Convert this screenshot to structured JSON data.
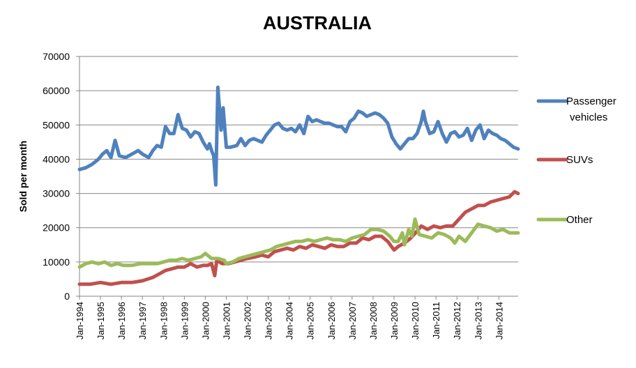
{
  "chart_data": {
    "type": "line",
    "title": "AUSTRALIA",
    "xlabel": "",
    "ylabel": "Sold per month",
    "ylim": [
      0,
      70000
    ],
    "yticks": [
      0,
      10000,
      20000,
      30000,
      40000,
      50000,
      60000,
      70000
    ],
    "xlim": [
      1994.0,
      2014.92
    ],
    "xticks": [
      {
        "year": 1994,
        "label": "Jan-1994"
      },
      {
        "year": 1995,
        "label": "Jan-1995"
      },
      {
        "year": 1996,
        "label": "Jan-1996"
      },
      {
        "year": 1997,
        "label": "Jan-1997"
      },
      {
        "year": 1998,
        "label": "Jan-1998"
      },
      {
        "year": 1999,
        "label": "Jan-1999"
      },
      {
        "year": 2000,
        "label": "Jan-2000"
      },
      {
        "year": 2001,
        "label": "Jan-2001"
      },
      {
        "year": 2002,
        "label": "Jan-2002"
      },
      {
        "year": 2003,
        "label": "Jan-2003"
      },
      {
        "year": 2004,
        "label": "Jan-2004"
      },
      {
        "year": 2005,
        "label": "Jan-2005"
      },
      {
        "year": 2006,
        "label": "Jan-2006"
      },
      {
        "year": 2007,
        "label": "Jan-2007"
      },
      {
        "year": 2008,
        "label": "Jan-2008"
      },
      {
        "year": 2009,
        "label": "Jan-2009"
      },
      {
        "year": 2010,
        "label": "Jan-2010"
      },
      {
        "year": 2011,
        "label": "Jan-2011"
      },
      {
        "year": 2012,
        "label": "Jan-2012"
      },
      {
        "year": 2013,
        "label": "Jan-2013"
      },
      {
        "year": 2014,
        "label": "Jan-2014"
      }
    ],
    "grid": true,
    "legend_position": "right",
    "series": [
      {
        "name": "Passenger vehicles",
        "color": "#4F81BD",
        "points": [
          [
            1994.0,
            37000
          ],
          [
            1994.3,
            37500
          ],
          [
            1994.6,
            38500
          ],
          [
            1994.9,
            40000
          ],
          [
            1995.1,
            41500
          ],
          [
            1995.3,
            42500
          ],
          [
            1995.5,
            40500
          ],
          [
            1995.7,
            45500
          ],
          [
            1995.9,
            41000
          ],
          [
            1996.2,
            40500
          ],
          [
            1996.5,
            41500
          ],
          [
            1996.8,
            42500
          ],
          [
            1997.0,
            41500
          ],
          [
            1997.3,
            40500
          ],
          [
            1997.5,
            42500
          ],
          [
            1997.7,
            44000
          ],
          [
            1997.9,
            43500
          ],
          [
            1998.1,
            49500
          ],
          [
            1998.3,
            47500
          ],
          [
            1998.5,
            47500
          ],
          [
            1998.7,
            53000
          ],
          [
            1998.9,
            49000
          ],
          [
            1999.1,
            48500
          ],
          [
            1999.3,
            46500
          ],
          [
            1999.5,
            48000
          ],
          [
            1999.7,
            47500
          ],
          [
            1999.9,
            45000
          ],
          [
            2000.1,
            43000
          ],
          [
            2000.2,
            44500
          ],
          [
            2000.3,
            42500
          ],
          [
            2000.4,
            41000
          ],
          [
            2000.5,
            32500
          ],
          [
            2000.6,
            61000
          ],
          [
            2000.75,
            48500
          ],
          [
            2000.85,
            55000
          ],
          [
            2001.0,
            43500
          ],
          [
            2001.2,
            43500
          ],
          [
            2001.5,
            44000
          ],
          [
            2001.7,
            46000
          ],
          [
            2001.9,
            44000
          ],
          [
            2002.1,
            45500
          ],
          [
            2002.3,
            46000
          ],
          [
            2002.5,
            45500
          ],
          [
            2002.7,
            45000
          ],
          [
            2002.9,
            47000
          ],
          [
            2003.1,
            48500
          ],
          [
            2003.3,
            50000
          ],
          [
            2003.5,
            50500
          ],
          [
            2003.7,
            49000
          ],
          [
            2003.9,
            48500
          ],
          [
            2004.1,
            49000
          ],
          [
            2004.3,
            48000
          ],
          [
            2004.5,
            50000
          ],
          [
            2004.7,
            47500
          ],
          [
            2004.9,
            52500
          ],
          [
            2005.1,
            51000
          ],
          [
            2005.3,
            51500
          ],
          [
            2005.5,
            51000
          ],
          [
            2005.7,
            50500
          ],
          [
            2005.9,
            50500
          ],
          [
            2006.1,
            50000
          ],
          [
            2006.3,
            49500
          ],
          [
            2006.5,
            49500
          ],
          [
            2006.7,
            48000
          ],
          [
            2006.9,
            51000
          ],
          [
            2007.1,
            52000
          ],
          [
            2007.3,
            54000
          ],
          [
            2007.5,
            53500
          ],
          [
            2007.7,
            52500
          ],
          [
            2007.9,
            53000
          ],
          [
            2008.1,
            53500
          ],
          [
            2008.3,
            53000
          ],
          [
            2008.5,
            52000
          ],
          [
            2008.7,
            50500
          ],
          [
            2008.9,
            46500
          ],
          [
            2009.1,
            44500
          ],
          [
            2009.3,
            43000
          ],
          [
            2009.5,
            44500
          ],
          [
            2009.7,
            46000
          ],
          [
            2009.9,
            46000
          ],
          [
            2010.1,
            47500
          ],
          [
            2010.3,
            51000
          ],
          [
            2010.4,
            54000
          ],
          [
            2010.5,
            51000
          ],
          [
            2010.7,
            47500
          ],
          [
            2010.9,
            48000
          ],
          [
            2011.1,
            51000
          ],
          [
            2011.3,
            47500
          ],
          [
            2011.5,
            45000
          ],
          [
            2011.7,
            47500
          ],
          [
            2011.9,
            48000
          ],
          [
            2012.1,
            46500
          ],
          [
            2012.3,
            47000
          ],
          [
            2012.5,
            49000
          ],
          [
            2012.7,
            45500
          ],
          [
            2012.9,
            48500
          ],
          [
            2013.1,
            50000
          ],
          [
            2013.3,
            46000
          ],
          [
            2013.5,
            48500
          ],
          [
            2013.7,
            47500
          ],
          [
            2013.9,
            47000
          ],
          [
            2014.1,
            46000
          ],
          [
            2014.3,
            45500
          ],
          [
            2014.5,
            44500
          ],
          [
            2014.7,
            43500
          ],
          [
            2014.92,
            43000
          ]
        ]
      },
      {
        "name": "SUVs",
        "color": "#C0504D",
        "points": [
          [
            1994.0,
            3500
          ],
          [
            1994.5,
            3500
          ],
          [
            1995.0,
            4000
          ],
          [
            1995.5,
            3500
          ],
          [
            1996.0,
            4000
          ],
          [
            1996.5,
            4000
          ],
          [
            1997.0,
            4500
          ],
          [
            1997.5,
            5500
          ],
          [
            1997.8,
            6500
          ],
          [
            1998.1,
            7500
          ],
          [
            1998.4,
            8000
          ],
          [
            1998.7,
            8500
          ],
          [
            1999.0,
            8500
          ],
          [
            1999.3,
            9500
          ],
          [
            1999.6,
            8500
          ],
          [
            1999.9,
            9000
          ],
          [
            2000.1,
            9000
          ],
          [
            2000.3,
            9500
          ],
          [
            2000.45,
            6000
          ],
          [
            2000.55,
            10500
          ],
          [
            2000.8,
            9500
          ],
          [
            2001.1,
            9500
          ],
          [
            2001.4,
            10000
          ],
          [
            2001.7,
            10500
          ],
          [
            2002.0,
            11000
          ],
          [
            2002.4,
            11500
          ],
          [
            2002.7,
            12000
          ],
          [
            2003.0,
            11500
          ],
          [
            2003.3,
            13000
          ],
          [
            2003.6,
            13500
          ],
          [
            2003.9,
            14000
          ],
          [
            2004.2,
            13500
          ],
          [
            2004.5,
            14500
          ],
          [
            2004.8,
            14000
          ],
          [
            2005.1,
            15000
          ],
          [
            2005.4,
            14500
          ],
          [
            2005.7,
            14000
          ],
          [
            2006.0,
            15000
          ],
          [
            2006.3,
            14500
          ],
          [
            2006.6,
            14500
          ],
          [
            2006.9,
            15500
          ],
          [
            2007.2,
            15500
          ],
          [
            2007.5,
            17000
          ],
          [
            2007.8,
            16500
          ],
          [
            2008.1,
            17500
          ],
          [
            2008.4,
            17500
          ],
          [
            2008.7,
            16000
          ],
          [
            2009.0,
            13500
          ],
          [
            2009.2,
            14500
          ],
          [
            2009.5,
            15500
          ],
          [
            2009.8,
            17000
          ],
          [
            2010.1,
            19000
          ],
          [
            2010.3,
            20500
          ],
          [
            2010.6,
            19500
          ],
          [
            2010.9,
            20500
          ],
          [
            2011.2,
            20000
          ],
          [
            2011.5,
            20500
          ],
          [
            2011.8,
            20500
          ],
          [
            2012.1,
            22500
          ],
          [
            2012.4,
            24500
          ],
          [
            2012.7,
            25500
          ],
          [
            2013.0,
            26500
          ],
          [
            2013.3,
            26500
          ],
          [
            2013.6,
            27500
          ],
          [
            2013.9,
            28000
          ],
          [
            2014.2,
            28500
          ],
          [
            2014.5,
            29000
          ],
          [
            2014.75,
            30500
          ],
          [
            2014.92,
            30000
          ]
        ]
      },
      {
        "name": "Other",
        "color": "#9BBB59",
        "points": [
          [
            1994.0,
            8500
          ],
          [
            1994.3,
            9500
          ],
          [
            1994.6,
            10000
          ],
          [
            1994.9,
            9500
          ],
          [
            1995.2,
            10000
          ],
          [
            1995.5,
            9000
          ],
          [
            1995.8,
            9500
          ],
          [
            1996.1,
            9000
          ],
          [
            1996.5,
            9000
          ],
          [
            1996.9,
            9500
          ],
          [
            1997.3,
            9500
          ],
          [
            1997.7,
            9500
          ],
          [
            1998.0,
            10000
          ],
          [
            1998.3,
            10500
          ],
          [
            1998.6,
            10500
          ],
          [
            1998.9,
            11000
          ],
          [
            1999.2,
            10500
          ],
          [
            1999.5,
            11000
          ],
          [
            1999.8,
            11500
          ],
          [
            2000.0,
            12500
          ],
          [
            2000.3,
            11000
          ],
          [
            2000.6,
            11000
          ],
          [
            2000.9,
            10500
          ],
          [
            2001.0,
            9500
          ],
          [
            2001.3,
            10000
          ],
          [
            2001.6,
            11000
          ],
          [
            2001.9,
            11500
          ],
          [
            2002.2,
            12000
          ],
          [
            2002.5,
            12500
          ],
          [
            2002.8,
            13000
          ],
          [
            2003.1,
            13500
          ],
          [
            2003.4,
            14500
          ],
          [
            2003.7,
            15000
          ],
          [
            2004.0,
            15500
          ],
          [
            2004.3,
            16000
          ],
          [
            2004.6,
            16000
          ],
          [
            2004.9,
            16500
          ],
          [
            2005.2,
            16000
          ],
          [
            2005.5,
            16500
          ],
          [
            2005.8,
            17000
          ],
          [
            2006.1,
            16500
          ],
          [
            2006.4,
            16500
          ],
          [
            2006.7,
            16000
          ],
          [
            2007.0,
            17000
          ],
          [
            2007.3,
            17500
          ],
          [
            2007.6,
            18000
          ],
          [
            2007.9,
            19500
          ],
          [
            2008.2,
            19500
          ],
          [
            2008.5,
            19000
          ],
          [
            2008.8,
            17500
          ],
          [
            2009.0,
            16000
          ],
          [
            2009.2,
            16000
          ],
          [
            2009.4,
            18500
          ],
          [
            2009.5,
            15000
          ],
          [
            2009.7,
            19500
          ],
          [
            2009.85,
            17500
          ],
          [
            2010.0,
            22500
          ],
          [
            2010.2,
            18000
          ],
          [
            2010.5,
            17500
          ],
          [
            2010.8,
            17000
          ],
          [
            2011.1,
            18500
          ],
          [
            2011.4,
            18000
          ],
          [
            2011.7,
            17000
          ],
          [
            2011.9,
            15500
          ],
          [
            2012.1,
            17500
          ],
          [
            2012.4,
            16000
          ],
          [
            2012.7,
            18500
          ],
          [
            2013.0,
            21000
          ],
          [
            2013.3,
            20500
          ],
          [
            2013.6,
            20000
          ],
          [
            2013.9,
            19000
          ],
          [
            2014.2,
            19500
          ],
          [
            2014.5,
            18500
          ],
          [
            2014.7,
            18500
          ],
          [
            2014.92,
            18500
          ]
        ]
      }
    ]
  }
}
